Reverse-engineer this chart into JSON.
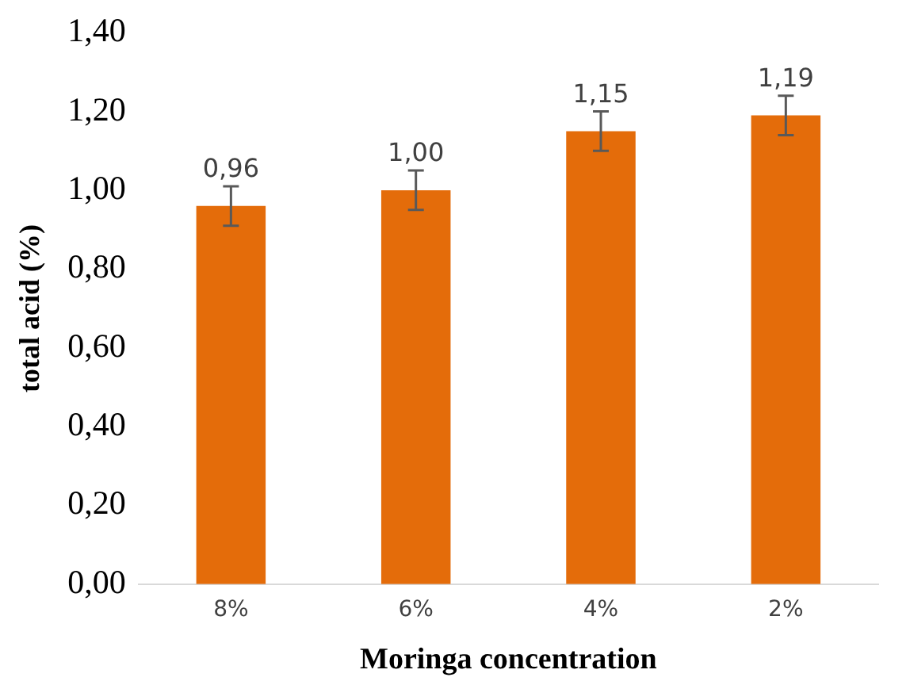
{
  "chart_data": {
    "type": "bar",
    "xlabel": "Moringa concentration",
    "ylabel": "total acid (%)",
    "categories": [
      "8%",
      "6%",
      "4%",
      "2%"
    ],
    "values": [
      0.96,
      1.0,
      1.15,
      1.19
    ],
    "value_labels": [
      "0,96",
      "1,00",
      "1,15",
      "1,19"
    ],
    "errors": [
      0.05,
      0.05,
      0.05,
      0.05
    ],
    "color": "#e46c0a",
    "ylim": [
      0,
      1.4
    ],
    "yticks": [
      {
        "value": 0,
        "label": "0,00"
      },
      {
        "value": 0.2,
        "label": "0,20"
      },
      {
        "value": 0.4,
        "label": "0,40"
      },
      {
        "value": 0.6,
        "label": "0,60"
      },
      {
        "value": 0.8,
        "label": "0,80"
      },
      {
        "value": 1,
        "label": "1,00"
      },
      {
        "value": 1.2,
        "label": "1,20"
      },
      {
        "value": 1.4,
        "label": "1,40"
      }
    ],
    "grid": false,
    "legend": false
  }
}
